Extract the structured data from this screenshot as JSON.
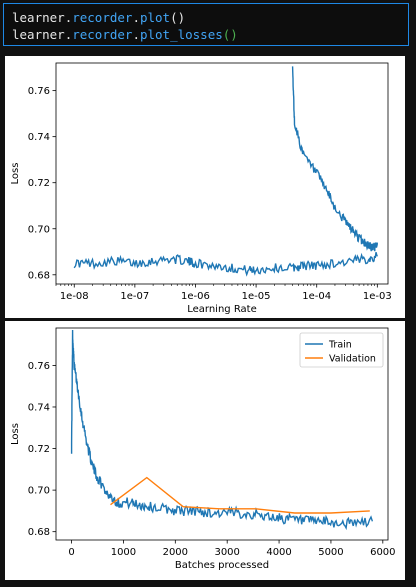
{
  "code": {
    "line1": {
      "obj": "learner",
      "attr": "recorder",
      "method": "plot",
      "parens": "()"
    },
    "line2": {
      "obj": "learner",
      "attr": "recorder",
      "method": "plot_losses",
      "parens": "()"
    }
  },
  "chart_data": [
    {
      "type": "line",
      "title": "",
      "xlabel": "Learning Rate",
      "ylabel": "Loss",
      "xscale": "log",
      "xlim": [
        5e-09,
        0.0015
      ],
      "ylim": [
        0.676,
        0.772
      ],
      "xticks": [
        "1e-08",
        "1e-07",
        "1e-06",
        "1e-05",
        "1e-04",
        "1e-03"
      ],
      "yticks": [
        "0.68",
        "0.70",
        "0.72",
        "0.74",
        "0.76"
      ],
      "series": [
        {
          "color": "#1f77b4",
          "x": [
            1e-08,
            2e-08,
            5e-08,
            1e-07,
            2e-07,
            4e-07,
            7e-07,
            1e-06,
            2e-06,
            4e-06,
            7e-06,
            1e-05,
            2e-05,
            4e-05,
            6e-05,
            0.0001,
            0.0002,
            0.0004,
            0.0007,
            0.001,
            4e-05,
            4.3e-05,
            6e-05,
            0.0001,
            0.00015,
            0.0002,
            0.0003,
            0.0004,
            0.0005,
            0.0006,
            0.0007,
            0.0008,
            0.0009,
            0.001
          ],
          "y": [
            0.685,
            0.685,
            0.686,
            0.685,
            0.686,
            0.687,
            0.686,
            0.685,
            0.684,
            0.683,
            0.682,
            0.682,
            0.683,
            0.683,
            0.684,
            0.684,
            0.685,
            0.686,
            0.687,
            0.688,
            0.77,
            0.746,
            0.732,
            0.724,
            0.716,
            0.709,
            0.703,
            0.699,
            0.696,
            0.694,
            0.693,
            0.692,
            0.692,
            0.694
          ]
        }
      ]
    },
    {
      "type": "line",
      "title": "",
      "xlabel": "Batches processed",
      "ylabel": "Loss",
      "xlim": [
        -300,
        6100
      ],
      "ylim": [
        0.676,
        0.778
      ],
      "xticks": [
        "0",
        "1000",
        "2000",
        "3000",
        "4000",
        "5000",
        "6000"
      ],
      "yticks": [
        "0.68",
        "0.70",
        "0.72",
        "0.74",
        "0.76"
      ],
      "legend": {
        "position": "top-right",
        "entries": [
          "Train",
          "Validation"
        ]
      },
      "series": [
        {
          "name": "Train",
          "color": "#1f77b4",
          "x": [
            0,
            20,
            50,
            100,
            200,
            300,
            400,
            500,
            700,
            900,
            1100,
            1300,
            1500,
            1800,
            2100,
            2400,
            2700,
            3000,
            3300,
            3600,
            3900,
            4200,
            4500,
            4800,
            5100,
            5400,
            5800
          ],
          "y": [
            0.72,
            0.775,
            0.76,
            0.752,
            0.735,
            0.722,
            0.712,
            0.706,
            0.698,
            0.694,
            0.694,
            0.693,
            0.692,
            0.691,
            0.69,
            0.69,
            0.689,
            0.689,
            0.689,
            0.688,
            0.687,
            0.686,
            0.685,
            0.685,
            0.684,
            0.684,
            0.685
          ]
        },
        {
          "name": "Validation",
          "color": "#ff7f0e",
          "x": [
            750,
            1450,
            2150,
            2850,
            3550,
            4300,
            5000,
            5750
          ],
          "y": [
            0.693,
            0.706,
            0.692,
            0.691,
            0.691,
            0.689,
            0.689,
            0.69
          ]
        }
      ]
    }
  ]
}
